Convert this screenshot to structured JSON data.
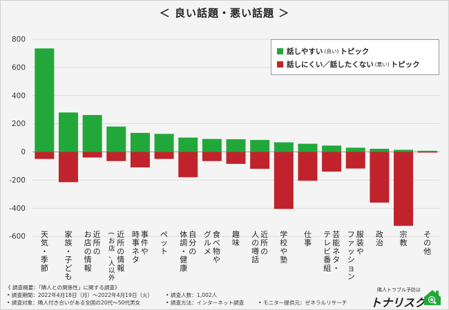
{
  "title": "＜ 良い話題・悪い話題 ＞",
  "legend": {
    "good": {
      "label": "話しやすい",
      "small": "(良い)",
      "suffix": "トピック",
      "color": "#22a83a"
    },
    "bad": {
      "label": "話しにくい／話したくない",
      "small": "(悪い)",
      "suffix": "トピック",
      "color": "#c0232b"
    }
  },
  "chart_data": {
    "type": "bar",
    "ylim": [
      -600,
      800
    ],
    "yticks": [
      800,
      600,
      400,
      200,
      0,
      -200,
      -400,
      -600
    ],
    "grid": true,
    "legend_position": "top-right",
    "categories": [
      {
        "lines": [
          "天気・季節"
        ]
      },
      {
        "lines": [
          "家族・子ども"
        ]
      },
      {
        "lines": [
          "近所の",
          "お店の情報"
        ]
      },
      {
        "lines": [
          "近所の情報",
          "(お店、人以外)"
        ]
      },
      {
        "lines": [
          "事件や",
          "時事ネタ"
        ]
      },
      {
        "lines": [
          "ペット"
        ]
      },
      {
        "lines": [
          "自分の",
          "体調・健康"
        ]
      },
      {
        "lines": [
          "食べ物や",
          "グルメ"
        ]
      },
      {
        "lines": [
          "趣味"
        ]
      },
      {
        "lines": [
          "近所の",
          "人の噂話"
        ]
      },
      {
        "lines": [
          "学校や塾"
        ]
      },
      {
        "lines": [
          "仕事"
        ]
      },
      {
        "lines": [
          "芸能ネタ・",
          "テレビ番組"
        ]
      },
      {
        "lines": [
          "服装や",
          "ファッション"
        ]
      },
      {
        "lines": [
          "政治"
        ]
      },
      {
        "lines": [
          "宗教"
        ]
      },
      {
        "lines": [
          "その他"
        ]
      }
    ],
    "series": [
      {
        "name": "話しやすい(良い)トピック",
        "color": "#22a83a",
        "values": [
          735,
          280,
          262,
          180,
          135,
          128,
          102,
          92,
          90,
          85,
          68,
          58,
          45,
          30,
          22,
          15,
          8
        ]
      },
      {
        "name": "話しにくい／話したくない(悪い)トピック",
        "color": "#c0232b",
        "values": [
          -50,
          -215,
          -40,
          -65,
          -110,
          -50,
          -180,
          -65,
          -85,
          -120,
          -405,
          -205,
          -140,
          -118,
          -360,
          -525,
          -5
        ]
      }
    ]
  },
  "notes": {
    "survey": "《 調査概要：「隣人との関係性」に関する調査》",
    "period": "• 調査期間：2022年4月18日（月）～2022年4月19日（火）",
    "count": "• 調査人数：1,002人",
    "target": "• 調査対象：隣人付き合いがある全国の20代～50代男女",
    "method": "• 調査方法：インターネット調査",
    "monitor": "• モニター提供元：ゼネラルリサーチ"
  },
  "logo": {
    "tagline": "隣人トラブル予防は",
    "name": "トナリスク"
  }
}
